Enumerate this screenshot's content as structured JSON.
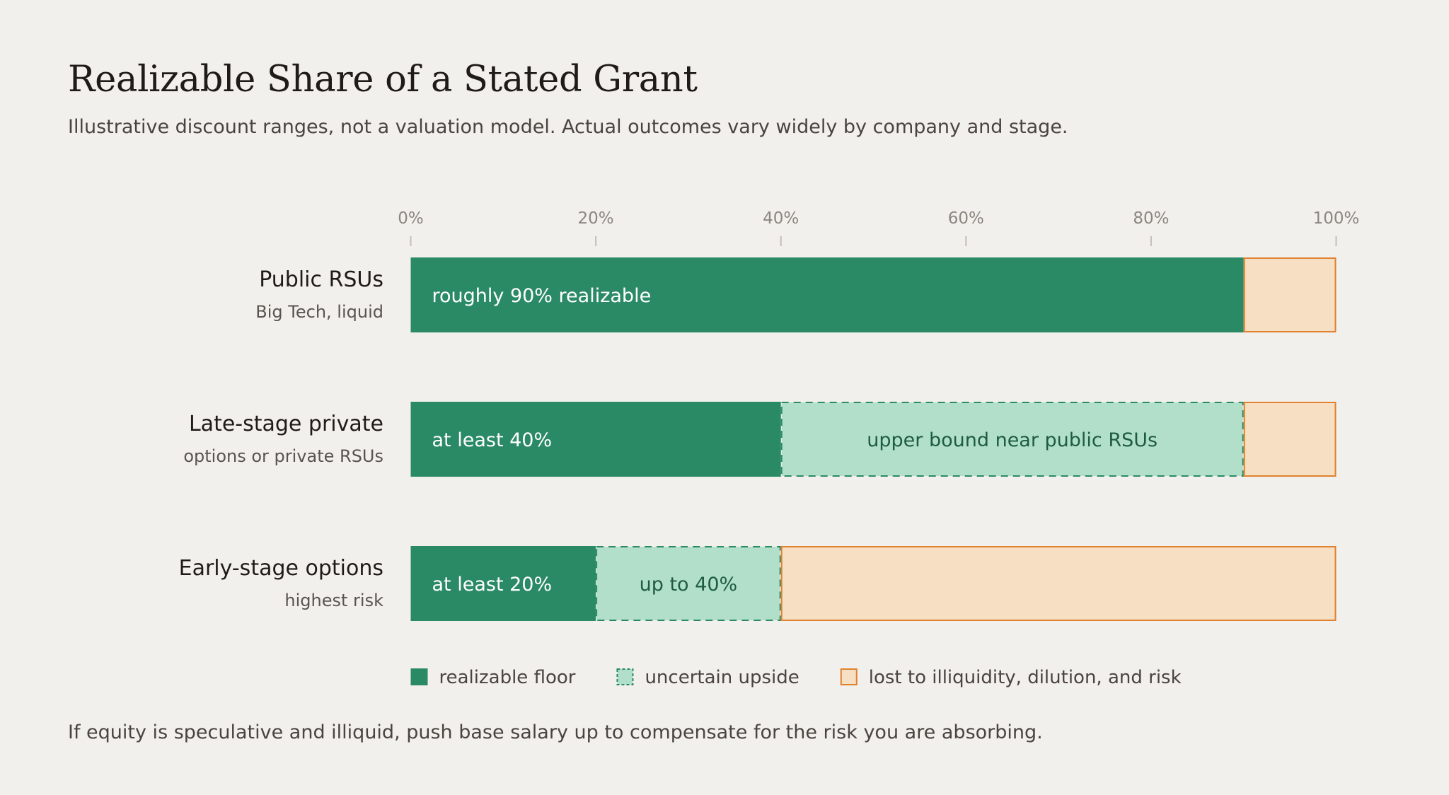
{
  "page": {
    "title": "Realizable Share of a Stated Grant",
    "subtitle": "Illustrative discount ranges, not a valuation model. Actual outcomes vary widely by company and stage.",
    "footnote": "If equity is speculative and illiquid, push base salary up to compensate for the risk you are absorbing."
  },
  "chart_data": {
    "type": "bar",
    "orientation": "horizontal",
    "stacked": true,
    "xlim": [
      0,
      100
    ],
    "x_ticks": [
      0,
      20,
      40,
      60,
      80,
      100
    ],
    "x_tick_labels": [
      "0%",
      "20%",
      "40%",
      "60%",
      "80%",
      "100%"
    ],
    "grid": false,
    "categories": [
      {
        "label": "Public RSUs",
        "sublabel": "Big Tech, liquid"
      },
      {
        "label": "Late-stage private",
        "sublabel": "options or private RSUs"
      },
      {
        "label": "Early-stage options",
        "sublabel": "highest risk"
      }
    ],
    "series": [
      {
        "name": "realizable floor",
        "key": "floor",
        "color": "#2b8a66",
        "values": [
          90,
          40,
          20
        ],
        "labels": [
          "roughly 90% realizable",
          "at least 40%",
          "at least 20%"
        ]
      },
      {
        "name": "uncertain upside",
        "key": "upside",
        "color": "#b2dfc9",
        "stroke": "#2b8a66",
        "values": [
          0,
          50,
          20
        ],
        "labels": [
          "",
          "upper bound near public RSUs",
          "up to 40%"
        ]
      },
      {
        "name": "lost to illiquidity, dilution, and risk",
        "key": "lost",
        "color": "#f6dfc2",
        "stroke": "#e0822f",
        "values": [
          10,
          10,
          60
        ],
        "labels": [
          "",
          "",
          ""
        ]
      }
    ],
    "legend_position": "bottom"
  }
}
